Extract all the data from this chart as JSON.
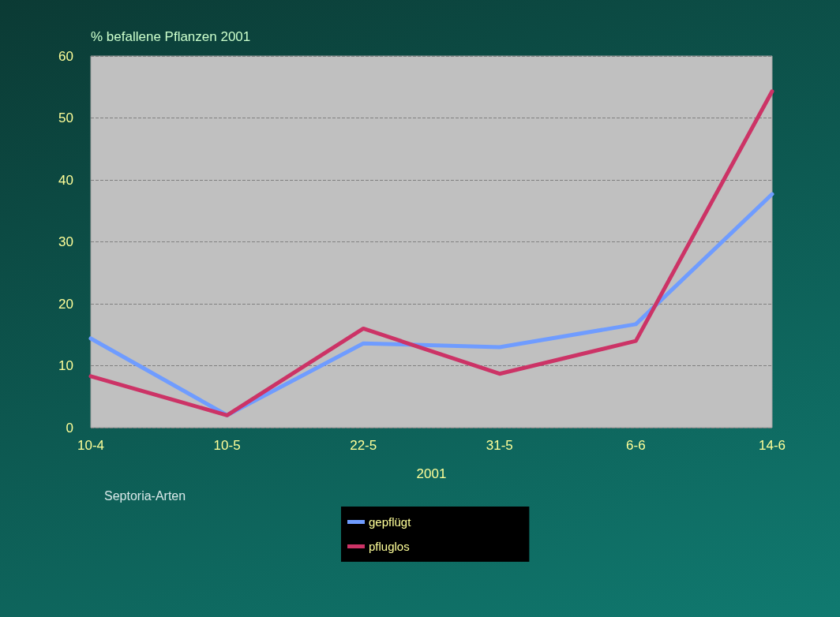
{
  "chart_data": {
    "type": "line",
    "ylabel": "% befallene Pflanzen 2001",
    "xlabel": "2001",
    "annotations": [
      "Septoria-Arten"
    ],
    "categories": [
      "10-4",
      "10-5",
      "22-5",
      "31-5",
      "6-6",
      "14-6"
    ],
    "series": [
      {
        "name": "gepflügt",
        "color": "#6f9cff",
        "values": [
          14.4,
          2.0,
          13.6,
          13.0,
          16.7,
          37.7
        ]
      },
      {
        "name": "pfluglos",
        "color": "#cc3366",
        "values": [
          8.3,
          2.0,
          16.0,
          8.7,
          14.0,
          54.3
        ]
      }
    ],
    "ylim": [
      0,
      60
    ],
    "yticks": [
      0,
      10,
      20,
      30,
      40,
      50,
      60
    ],
    "grid": "y",
    "legend": "bottom",
    "marker": "none",
    "line_style": "solid"
  }
}
